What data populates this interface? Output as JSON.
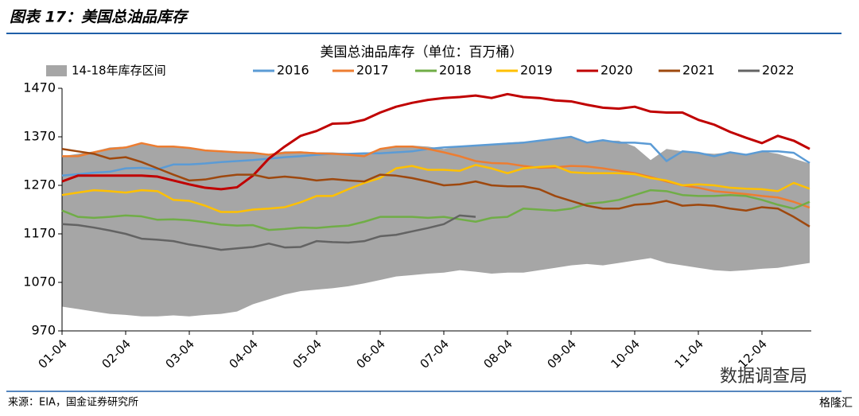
{
  "header": "图表 17：美国总油品库存",
  "source": "来源：EIA，国金证券研究所",
  "watermarks": [
    "数据调查局",
    "格隆汇"
  ],
  "chart_data": {
    "type": "line",
    "title": "美国总油品库存（单位：百万桶）",
    "categories": [
      "01-04",
      null,
      null,
      null,
      "02-04",
      null,
      null,
      null,
      "03-04",
      null,
      null,
      null,
      "04-04",
      null,
      null,
      null,
      "05-04",
      null,
      null,
      null,
      "06-04",
      null,
      null,
      null,
      "07-04",
      null,
      null,
      null,
      "08-04",
      null,
      null,
      null,
      "09-04",
      null,
      null,
      null,
      "10-04",
      null,
      null,
      null,
      "11-04",
      null,
      null,
      null,
      "12-04",
      null,
      null,
      null
    ],
    "ylim": [
      970,
      1470
    ],
    "yticks": [
      970,
      1070,
      1170,
      1270,
      1370,
      1470
    ],
    "band": {
      "name": "14-18年库存区间",
      "color": "#a6a6a6",
      "lower": [
        1020,
        1015,
        1010,
        1005,
        1003,
        1000,
        1000,
        1002,
        1000,
        1003,
        1005,
        1010,
        1025,
        1035,
        1045,
        1052,
        1055,
        1058,
        1062,
        1068,
        1075,
        1082,
        1085,
        1088,
        1090,
        1095,
        1092,
        1088,
        1090,
        1090,
        1095,
        1100,
        1105,
        1108,
        1105,
        1110,
        1115,
        1120,
        1110,
        1105,
        1100,
        1095,
        1093,
        1095,
        1098,
        1100,
        1105,
        1110
      ],
      "upper": [
        1330,
        1335,
        1340,
        1348,
        1350,
        1358,
        1352,
        1350,
        1348,
        1343,
        1340,
        1340,
        1338,
        1335,
        1340,
        1340,
        1338,
        1338,
        1336,
        1335,
        1345,
        1350,
        1352,
        1350,
        1345,
        1350,
        1352,
        1355,
        1358,
        1360,
        1362,
        1366,
        1370,
        1360,
        1362,
        1362,
        1350,
        1322,
        1345,
        1340,
        1337,
        1335,
        1338,
        1335,
        1340,
        1335,
        1325,
        1315
      ]
    },
    "series": [
      {
        "name": "2016",
        "color": "#5b9bd5",
        "values": [
          1290,
          1293,
          1296,
          1298,
          1305,
          1306,
          1303,
          1313,
          1313,
          1315,
          1318,
          1320,
          1322,
          1325,
          1328,
          1330,
          1333,
          1335,
          1335,
          1336,
          1336,
          1338,
          1340,
          1345,
          1348,
          1350,
          1352,
          1354,
          1356,
          1358,
          1362,
          1366,
          1370,
          1358,
          1363,
          1358,
          1358,
          1355,
          1320,
          1340,
          1337,
          1330,
          1338,
          1333,
          1340,
          1340,
          1337,
          1316
        ]
      },
      {
        "name": "2017",
        "color": "#ed7d31",
        "values": [
          1330,
          1330,
          1338,
          1345,
          1348,
          1357,
          1350,
          1350,
          1347,
          1342,
          1340,
          1338,
          1337,
          1333,
          1337,
          1338,
          1336,
          1335,
          1333,
          1330,
          1345,
          1350,
          1350,
          1345,
          1338,
          1330,
          1320,
          1316,
          1315,
          1310,
          1306,
          1307,
          1310,
          1309,
          1305,
          1300,
          1295,
          1287,
          1278,
          1270,
          1265,
          1258,
          1255,
          1252,
          1248,
          1245,
          1236,
          1224
        ]
      },
      {
        "name": "2018",
        "color": "#70ad47",
        "values": [
          1218,
          1205,
          1203,
          1205,
          1208,
          1206,
          1199,
          1200,
          1198,
          1194,
          1189,
          1187,
          1188,
          1178,
          1180,
          1183,
          1182,
          1185,
          1187,
          1195,
          1205,
          1205,
          1205,
          1203,
          1205,
          1200,
          1195,
          1203,
          1205,
          1222,
          1220,
          1218,
          1222,
          1232,
          1235,
          1240,
          1250,
          1260,
          1258,
          1250,
          1248,
          1248,
          1250,
          1248,
          1240,
          1230,
          1222,
          1236
        ]
      },
      {
        "name": "2019",
        "color": "#ffc000",
        "values": [
          1250,
          1255,
          1260,
          1258,
          1255,
          1260,
          1258,
          1240,
          1238,
          1228,
          1215,
          1215,
          1220,
          1222,
          1225,
          1235,
          1248,
          1248,
          1262,
          1275,
          1285,
          1305,
          1310,
          1302,
          1302,
          1300,
          1312,
          1305,
          1295,
          1305,
          1308,
          1310,
          1297,
          1295,
          1295,
          1295,
          1293,
          1285,
          1280,
          1270,
          1272,
          1270,
          1265,
          1263,
          1262,
          1258,
          1275,
          1263
        ]
      },
      {
        "name": "2020",
        "color": "#c00000",
        "values": [
          1278,
          1290,
          1290,
          1290,
          1290,
          1290,
          1288,
          1280,
          1272,
          1265,
          1262,
          1266,
          1290,
          1325,
          1350,
          1372,
          1382,
          1397,
          1398,
          1405,
          1420,
          1432,
          1440,
          1446,
          1450,
          1452,
          1455,
          1450,
          1458,
          1452,
          1450,
          1445,
          1443,
          1436,
          1430,
          1428,
          1432,
          1422,
          1420,
          1420,
          1405,
          1395,
          1380,
          1368,
          1357,
          1372,
          1362,
          1345
        ]
      },
      {
        "name": "2021",
        "color": "#9e480e",
        "values": [
          1345,
          1340,
          1335,
          1325,
          1328,
          1318,
          1305,
          1292,
          1280,
          1282,
          1288,
          1292,
          1292,
          1285,
          1288,
          1285,
          1280,
          1283,
          1280,
          1278,
          1292,
          1290,
          1285,
          1278,
          1270,
          1272,
          1278,
          1270,
          1268,
          1268,
          1262,
          1248,
          1238,
          1228,
          1222,
          1222,
          1230,
          1232,
          1238,
          1228,
          1230,
          1228,
          1222,
          1218,
          1225,
          1222,
          1205,
          1185
        ]
      },
      {
        "name": "2022",
        "color": "#636363",
        "values": [
          1190,
          1188,
          1183,
          1177,
          1170,
          1160,
          1158,
          1155,
          1148,
          1143,
          1137,
          1140,
          1143,
          1150,
          1142,
          1143,
          1155,
          1153,
          1152,
          1155,
          1165,
          1168,
          1175,
          1182,
          1190,
          1208,
          1205,
          null,
          null,
          null,
          null,
          null,
          null,
          null,
          null,
          null,
          null,
          null,
          null,
          null,
          null,
          null,
          null,
          null,
          null,
          null,
          null,
          null
        ]
      }
    ]
  }
}
